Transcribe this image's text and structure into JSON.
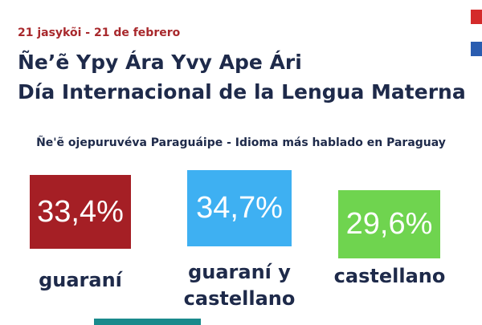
{
  "header": {
    "date": "21 jasykõi - 21 de febrero",
    "title_lines": [
      "Ñe’ẽ Ypy Ára Yvy Ape Ári",
      "Día Internacional de la Lengua Materna"
    ]
  },
  "subtitle": "Ñe'ẽ ojepuruvéva Paraguáipe - Idioma más hablado en Paraguay",
  "items": [
    {
      "value": "33,4%",
      "label_lines": [
        "guaraní"
      ]
    },
    {
      "value": "34,7%",
      "label_lines": [
        "guaraní y",
        "castellano"
      ]
    },
    {
      "value": "29,6%",
      "label_lines": [
        "castellano"
      ]
    }
  ]
}
